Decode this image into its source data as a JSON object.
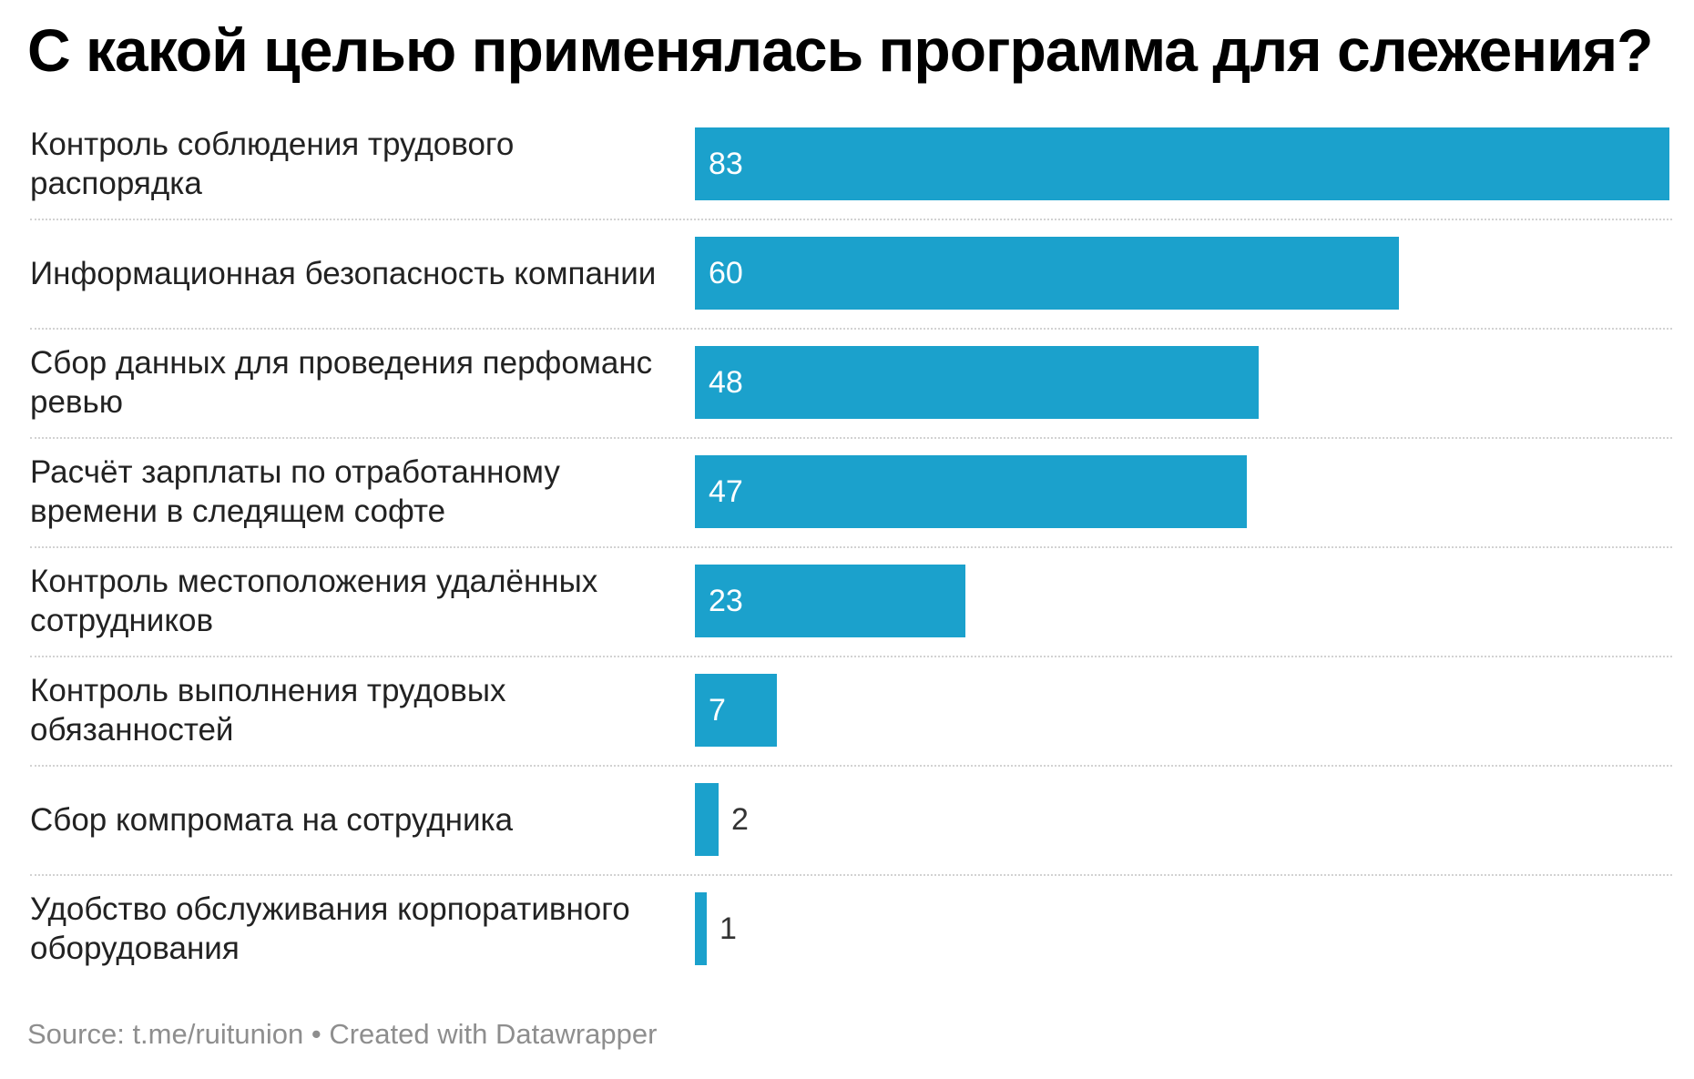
{
  "chart_data": {
    "type": "bar",
    "orientation": "horizontal",
    "title": "С какой целью применялась программа для слежения?",
    "categories": [
      "Контроль соблюдения трудового распорядка",
      "Информационная безопасность компании",
      "Сбор данных для проведения перфоманс ревью",
      "Расчёт зарплаты по отработанному времени в следящем софте",
      "Контроль местоположения удалённых сотрудников",
      "Контроль выполнения трудовых обязанностей",
      "Сбор компромата на сотрудника",
      "Удобство обслуживания корпоративного оборудования"
    ],
    "values": [
      83,
      60,
      48,
      47,
      23,
      7,
      2,
      1
    ],
    "xlim": [
      0,
      83
    ],
    "grid": false,
    "legend": "none",
    "bar_color": "#1ba1cc"
  },
  "footer": {
    "source": "Source: t.me/ruitunion • Created with Datawrapper"
  }
}
